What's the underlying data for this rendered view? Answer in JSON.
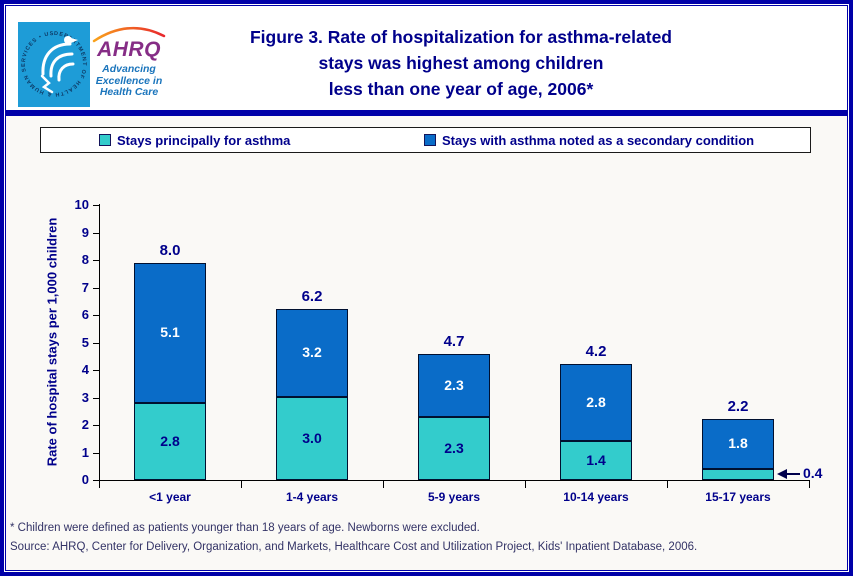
{
  "header": {
    "logo": {
      "seal_text": "DEPARTMENT OF HEALTH & HUMAN SERVICES • USA",
      "org_abbrev": "AHRQ",
      "tagline_lines": [
        "Advancing",
        "Excellence in",
        "Health Care"
      ]
    },
    "title_lines": [
      "Figure 3. Rate of hospitalization for asthma-related",
      "stays was highest among children",
      "less than one year of age, 2006*"
    ]
  },
  "legend": {
    "items": [
      {
        "label": "Stays principally for asthma",
        "color": "#33CCCC"
      },
      {
        "label": "Stays with asthma noted as a secondary condition",
        "color": "#0A6CC8"
      }
    ]
  },
  "chart_data": {
    "type": "bar",
    "stacked": true,
    "title": "Figure 3. Rate of hospitalization for asthma-related stays was highest among children less than one year of age, 2006*",
    "categories": [
      "<1 year",
      "1-4 years",
      "5-9 years",
      "10-14 years",
      "15-17 years"
    ],
    "series": [
      {
        "name": "Stays principally for asthma",
        "color": "#33CCCC",
        "values": [
          2.8,
          3.0,
          2.3,
          1.4,
          0.4
        ],
        "labels": [
          "2.8",
          "3.0",
          "2.3",
          "1.4",
          "0.4"
        ]
      },
      {
        "name": "Stays with asthma noted as a secondary condition",
        "color": "#0A6CC8",
        "values": [
          5.1,
          3.2,
          2.3,
          2.8,
          1.8
        ],
        "labels": [
          "5.1",
          "3.2",
          "2.3",
          "2.8",
          "1.8"
        ]
      }
    ],
    "totals": [
      8.0,
      6.2,
      4.7,
      4.2,
      2.2
    ],
    "total_labels": [
      "8.0",
      "6.2",
      "4.7",
      "4.2",
      "2.2"
    ],
    "xlabel": "",
    "ylabel": "Rate of hospital stays per 1,000 children",
    "ylim": [
      0,
      10
    ],
    "ytick_interval": 1,
    "grid": false,
    "legend_position": "top",
    "callout": {
      "category_index": 4,
      "series_index": 0,
      "label": "0.4"
    }
  },
  "footnotes": [
    "* Children were defined as patients younger than 18 years of age.  Newborns were excluded.",
    "Source: AHRQ, Center for Delivery, Organization, and Markets, Healthcare Cost and Utilization Project, Kids' Inpatient Database, 2006."
  ],
  "colors": {
    "accent_navy": "#00008B",
    "border_navy": "#0000A8",
    "bar_teal": "#33CCCC",
    "bar_blue": "#0A6CC8",
    "logo_blue": "#1E9CD7",
    "logo_purple": "#862D86",
    "swoosh_orange": "#F9A21B",
    "swoosh_red": "#E8262D",
    "tagline_blue": "#1B75BC",
    "footnote_navy": "#333366"
  }
}
